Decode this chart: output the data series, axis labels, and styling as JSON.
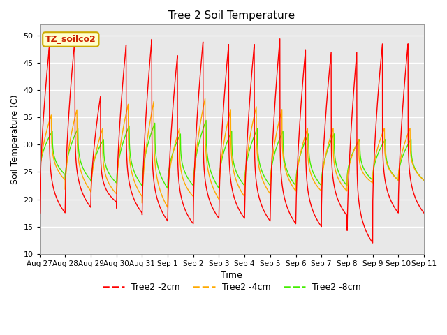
{
  "title": "Tree 2 Soil Temperature",
  "xlabel": "Time",
  "ylabel": "Soil Temperature (C)",
  "ylim": [
    10,
    52
  ],
  "yticks": [
    10,
    15,
    20,
    25,
    30,
    35,
    40,
    45,
    50
  ],
  "plot_bg": "#e8e8e8",
  "fig_bg": "#ffffff",
  "annotation_text": "TZ_soilco2",
  "annotation_fg": "#cc2200",
  "annotation_bg": "#ffffcc",
  "annotation_border": "#ccaa00",
  "colors": [
    "#ff0000",
    "#ffaa00",
    "#44ee00"
  ],
  "legend_labels": [
    "Tree2 -2cm",
    "Tree2 -4cm",
    "Tree2 -8cm"
  ],
  "x_tick_labels": [
    "Aug 27",
    "Aug 28",
    "Aug 29",
    "Aug 30",
    "Aug 31",
    "Sep 1",
    "Sep 2",
    "Sep 3",
    "Sep 4",
    "Sep 5",
    "Sep 6",
    "Sep 7",
    "Sep 8",
    "Sep 9",
    "Sep 10",
    "Sep 11"
  ],
  "num_days": 15,
  "red_max": [
    48.0,
    49.5,
    39.0,
    48.5,
    49.5,
    46.5,
    49.0,
    48.5,
    48.5,
    49.5,
    47.5,
    47.0,
    47.0,
    48.5,
    48.5
  ],
  "red_min": [
    17.5,
    18.5,
    19.5,
    17.5,
    16.0,
    15.5,
    16.5,
    16.5,
    16.0,
    15.5,
    15.0,
    17.0,
    12.0,
    17.5,
    17.5
  ],
  "orange_max": [
    35.5,
    36.5,
    33.0,
    37.5,
    38.0,
    33.0,
    38.5,
    36.5,
    37.0,
    36.5,
    33.0,
    33.0,
    31.0,
    33.0,
    33.0
  ],
  "orange_min": [
    23.5,
    21.5,
    21.0,
    20.5,
    18.5,
    20.5,
    20.0,
    20.5,
    21.0,
    21.5,
    21.5,
    21.5,
    23.0,
    23.5,
    23.5
  ],
  "green_max": [
    32.5,
    33.0,
    31.0,
    33.5,
    34.0,
    32.0,
    34.5,
    32.5,
    33.0,
    32.5,
    32.0,
    32.0,
    31.0,
    31.0,
    31.0
  ],
  "green_min": [
    24.5,
    23.5,
    23.0,
    22.5,
    22.0,
    22.5,
    22.0,
    22.5,
    22.5,
    22.5,
    22.5,
    22.5,
    23.5,
    23.5,
    23.5
  ]
}
